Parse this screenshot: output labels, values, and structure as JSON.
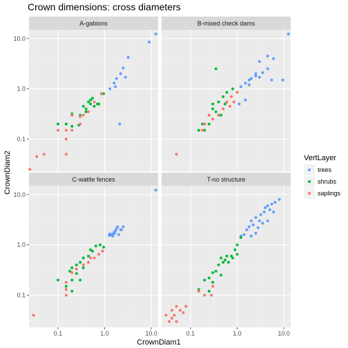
{
  "chart_data": {
    "type": "scatter",
    "title": "Crown dimensions: cross diameters",
    "xlabel": "CrownDiam1",
    "ylabel": "CrownDiam2",
    "x_scale": "log10",
    "y_scale": "log10",
    "xlim": [
      0.024,
      14
    ],
    "ylim": [
      0.023,
      15
    ],
    "x_ticks": [
      "0.1",
      "1.0",
      "10.0"
    ],
    "y_ticks": [
      "0.1",
      "1.0",
      "10.0"
    ],
    "grid": true,
    "legend": {
      "title": "VertLayer",
      "position": "right",
      "entries": [
        {
          "label": "trees",
          "color": "#619CFF"
        },
        {
          "label": "shrubs",
          "color": "#00BA38"
        },
        {
          "label": "saplings",
          "color": "#F8766D"
        }
      ]
    },
    "panels": [
      {
        "strip": "A-gabions",
        "series": {
          "trees": [
            [
              12.5,
              12.3
            ],
            [
              9,
              8.5
            ],
            [
              3.2,
              4.2
            ],
            [
              2.5,
              2.6
            ],
            [
              2.2,
              2.0
            ],
            [
              2.8,
              1.7
            ],
            [
              1.8,
              1.6
            ],
            [
              1.6,
              1.3
            ],
            [
              1.7,
              1.1
            ],
            [
              1.3,
              1.0
            ],
            [
              2.1,
              0.2
            ]
          ],
          "shrubs": [
            [
              0.95,
              0.8
            ],
            [
              0.55,
              0.65
            ],
            [
              0.45,
              0.55
            ],
            [
              0.6,
              0.45
            ],
            [
              0.7,
              0.5
            ],
            [
              0.75,
              0.5
            ],
            [
              0.5,
              0.5
            ],
            [
              0.35,
              0.45
            ],
            [
              0.4,
              0.4
            ],
            [
              0.3,
              0.3
            ],
            [
              0.2,
              0.32
            ],
            [
              0.15,
              0.2
            ],
            [
              0.1,
              0.2
            ],
            [
              0.2,
              0.18
            ],
            [
              0.28,
              0.19
            ],
            [
              0.4,
              0.35
            ],
            [
              0.5,
              0.6
            ]
          ],
          "saplings": [
            [
              0.85,
              0.8
            ],
            [
              0.6,
              0.55
            ],
            [
              0.45,
              0.35
            ],
            [
              0.35,
              0.3
            ],
            [
              0.3,
              0.28
            ],
            [
              0.2,
              0.3
            ],
            [
              0.3,
              0.2
            ],
            [
              0.2,
              0.15
            ],
            [
              0.15,
              0.15
            ],
            [
              0.1,
              0.15
            ],
            [
              0.15,
              0.1
            ],
            [
              0.05,
              0.05
            ],
            [
              0.035,
              0.045
            ],
            [
              0.025,
              0.025
            ],
            [
              0.15,
              0.05
            ]
          ]
        }
      },
      {
        "strip": "B-mixed check dams",
        "series": {
          "trees": [
            [
              12.5,
              12.3
            ],
            [
              4.5,
              4.5
            ],
            [
              6,
              4
            ],
            [
              3,
              3.5
            ],
            [
              4.5,
              2.5
            ],
            [
              3.5,
              2.1
            ],
            [
              2.5,
              2
            ],
            [
              2.5,
              1.8
            ],
            [
              3,
              1.7
            ],
            [
              2,
              1.6
            ],
            [
              1.8,
              1.5
            ],
            [
              1.5,
              1.3
            ],
            [
              1.2,
              1.1
            ],
            [
              1.8,
              1.2
            ],
            [
              5.5,
              1.5
            ],
            [
              9.5,
              1.5
            ],
            [
              1.5,
              0.6
            ],
            [
              1.1,
              0.5
            ]
          ],
          "shrubs": [
            [
              0.35,
              2.5
            ],
            [
              0.8,
              1.0
            ],
            [
              0.6,
              0.85
            ],
            [
              0.5,
              0.7
            ],
            [
              0.4,
              0.55
            ],
            [
              0.55,
              0.5
            ],
            [
              0.3,
              0.4
            ],
            [
              0.35,
              0.35
            ],
            [
              0.4,
              0.3
            ],
            [
              0.25,
              0.3
            ],
            [
              0.2,
              0.2
            ],
            [
              0.15,
              0.15
            ],
            [
              0.2,
              0.15
            ],
            [
              0.18,
              0.2
            ],
            [
              0.25,
              0.2
            ],
            [
              0.3,
              0.5
            ],
            [
              0.6,
              0.55
            ],
            [
              0.45,
              0.3
            ]
          ],
          "saplings": [
            [
              1.0,
              0.85
            ],
            [
              0.85,
              0.55
            ],
            [
              0.7,
              0.45
            ],
            [
              0.6,
              0.55
            ],
            [
              0.5,
              0.4
            ],
            [
              0.4,
              0.3
            ],
            [
              0.3,
              0.25
            ],
            [
              0.25,
              0.3
            ],
            [
              0.2,
              0.2
            ],
            [
              0.18,
              0.15
            ],
            [
              0.05,
              0.05
            ],
            [
              0.75,
              0.7
            ]
          ]
        }
      },
      {
        "strip": "C-wattle fences",
        "series": {
          "trees": [
            [
              12.5,
              12.3
            ],
            [
              2.5,
              2.3
            ],
            [
              2.2,
              2.0
            ],
            [
              1.9,
              2.3
            ],
            [
              1.8,
              2.1
            ],
            [
              1.7,
              1.9
            ],
            [
              1.6,
              1.8
            ],
            [
              1.5,
              1.65
            ],
            [
              1.4,
              1.6
            ],
            [
              1.3,
              1.65
            ],
            [
              1.25,
              1.55
            ],
            [
              1.4,
              1.55
            ],
            [
              1.5,
              1.5
            ],
            [
              1.65,
              1.7
            ],
            [
              2.0,
              1.6
            ],
            [
              2.3,
              2.0
            ]
          ],
          "shrubs": [
            [
              0.8,
              1.0
            ],
            [
              0.65,
              0.95
            ],
            [
              0.5,
              0.8
            ],
            [
              0.45,
              0.6
            ],
            [
              0.35,
              0.55
            ],
            [
              0.3,
              0.45
            ],
            [
              0.25,
              0.4
            ],
            [
              0.2,
              0.35
            ],
            [
              0.18,
              0.3
            ],
            [
              0.25,
              0.27
            ],
            [
              0.3,
              0.2
            ],
            [
              0.2,
              0.2
            ],
            [
              0.1,
              0.2
            ],
            [
              0.15,
              0.15
            ],
            [
              0.2,
              0.12
            ],
            [
              0.35,
              0.35
            ],
            [
              0.55,
              0.75
            ],
            [
              0.95,
              0.9
            ]
          ],
          "saplings": [
            [
              0.9,
              0.75
            ],
            [
              0.75,
              0.65
            ],
            [
              0.6,
              0.55
            ],
            [
              0.5,
              0.55
            ],
            [
              0.45,
              0.45
            ],
            [
              0.35,
              0.4
            ],
            [
              0.25,
              0.33
            ],
            [
              0.2,
              0.28
            ],
            [
              0.15,
              0.18
            ],
            [
              0.15,
              0.13
            ],
            [
              0.15,
              0.1
            ],
            [
              0.03,
              0.04
            ]
          ]
        }
      },
      {
        "strip": "T-no structure",
        "series": {
          "trees": [
            [
              8,
              8
            ],
            [
              6.5,
              7
            ],
            [
              5.5,
              6.5
            ],
            [
              4.5,
              6
            ],
            [
              5,
              5
            ],
            [
              4,
              5.5
            ],
            [
              3.8,
              4.5
            ],
            [
              3.2,
              4
            ],
            [
              2.5,
              3.5
            ],
            [
              3,
              3
            ],
            [
              2,
              3
            ],
            [
              3.5,
              2.7
            ],
            [
              2.2,
              2.5
            ],
            [
              2.8,
              2.2
            ],
            [
              1.8,
              2.3
            ],
            [
              1.6,
              2
            ],
            [
              2.5,
              1.7
            ],
            [
              4.5,
              3
            ],
            [
              6,
              4.5
            ],
            [
              2,
              1.5
            ],
            [
              1.4,
              1.6
            ],
            [
              1.2,
              1.5
            ]
          ],
          "shrubs": [
            [
              1.2,
              1.4
            ],
            [
              1.0,
              1.0
            ],
            [
              0.9,
              0.8
            ],
            [
              0.75,
              0.6
            ],
            [
              0.6,
              0.6
            ],
            [
              0.55,
              0.5
            ],
            [
              0.5,
              0.45
            ],
            [
              0.45,
              0.55
            ],
            [
              0.4,
              0.4
            ],
            [
              0.35,
              0.3
            ],
            [
              0.3,
              0.28
            ],
            [
              0.25,
              0.22
            ],
            [
              0.3,
              0.18
            ],
            [
              0.25,
              0.12
            ],
            [
              0.2,
              0.2
            ],
            [
              0.15,
              0.13
            ],
            [
              0.8,
              0.55
            ],
            [
              1.0,
              0.65
            ],
            [
              0.65,
              0.45
            ],
            [
              0.45,
              0.25
            ]
          ],
          "saplings": [
            [
              0.3,
              0.15
            ],
            [
              0.28,
              0.1
            ],
            [
              0.2,
              0.1
            ],
            [
              0.15,
              0.12
            ],
            [
              0.08,
              0.06
            ],
            [
              0.07,
              0.045
            ],
            [
              0.06,
              0.05
            ],
            [
              0.05,
              0.06
            ],
            [
              0.045,
              0.04
            ],
            [
              0.04,
              0.035
            ],
            [
              0.035,
              0.03
            ],
            [
              0.03,
              0.04
            ],
            [
              0.05,
              0.03
            ],
            [
              0.04,
              0.05
            ]
          ]
        }
      }
    ]
  }
}
